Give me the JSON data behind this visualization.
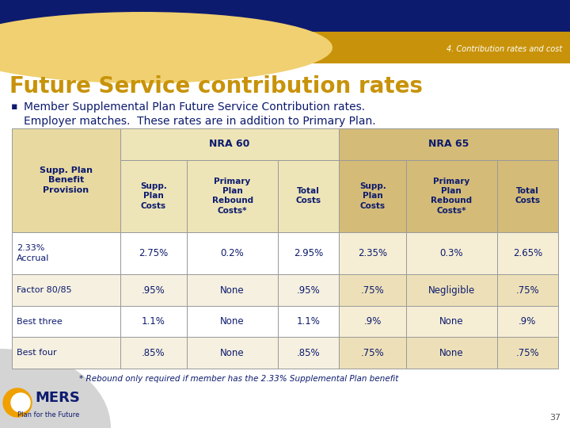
{
  "bg_color": "#FFFFFF",
  "dark_blue": "#0D1B6E",
  "gold": "#C8930A",
  "light_gold": "#F0D070",
  "title_color": "#C8930A",
  "title_text": "Future Service contribution rates",
  "text_color": "#0D1B6E",
  "header_label": "4. Contribution rates and cost",
  "bullet_line1": "Member Supplemental Plan Future Service Contribution rates.",
  "bullet_line2": "Employer matches.  These rates are in addition to Primary Plan.",
  "nra60_header": "NRA 60",
  "nra65_header": "NRA 65",
  "col0_header": "Supp. Plan\nBenefit\nProvision",
  "sub_headers_nra60": [
    "Supp.\nPlan\nCosts",
    "Primary\nPlan\nRebound\nCosts*",
    "Total\nCosts"
  ],
  "sub_headers_nra65": [
    "Supp.\nPlan\nCosts",
    "Primary\nPlan\nRebound\nCosts*",
    "Total\nCosts"
  ],
  "header_bg": "#E8D9A0",
  "nra60_bg": "#EDE5B8",
  "nra65_bg": "#D4BC78",
  "row_bg_even": "#FFFFFF",
  "row_bg_odd": "#F5F0E0",
  "rows": [
    [
      "2.33%\nAccrual",
      "2.75%",
      "0.2%",
      "2.95%",
      "2.35%",
      "0.3%",
      "2.65%"
    ],
    [
      "Factor 80/85",
      ".95%",
      "None",
      ".95%",
      ".75%",
      "Negligible",
      ".75%"
    ],
    [
      "Best three",
      "1.1%",
      "None",
      "1.1%",
      ".9%",
      "None",
      ".9%"
    ],
    [
      "Best four",
      ".85%",
      "None",
      ".85%",
      ".75%",
      "None",
      ".75%"
    ]
  ],
  "footnote": "* Rebound only required if member has the 2.33% Supplemental Plan benefit",
  "page_num": "37",
  "omers_gold": "#F0A000",
  "omers_grey": "#A0A0A0"
}
